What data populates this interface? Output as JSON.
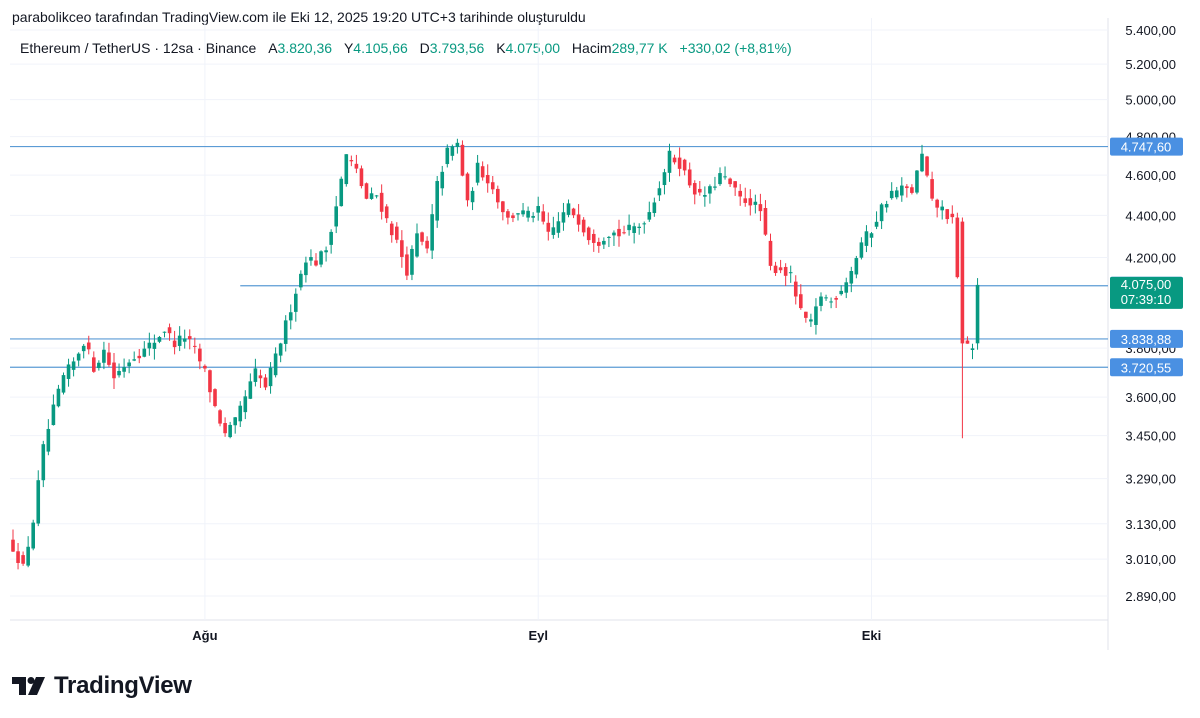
{
  "header": {
    "created_text": "parabolikceo tarafından TradingView.com ile Eki 12, 2025 19:20 UTC+3 tarihinde oluşturuldu"
  },
  "legend": {
    "symbol": "Ethereum / TetherUS · 12sa · Binance",
    "open_label": "A",
    "open_value": "3.820,36",
    "high_label": "Y",
    "high_value": "4.105,66",
    "low_label": "D",
    "low_value": "3.793,56",
    "close_label": "K",
    "close_value": "4.075,00",
    "volume_label": "Hacim",
    "volume_value": "289,77 K",
    "change": "+330,02 (+8,81%)"
  },
  "brand": {
    "name": "TradingView"
  },
  "colors": {
    "up": "#089981",
    "down": "#f23645",
    "level_line": "#5b9bd5",
    "level_label": "#4a90e2",
    "grid": "#f0f3fa"
  },
  "chart_data": {
    "type": "candlestick",
    "y_scale": "log",
    "ylim": [
      2800,
      5450
    ],
    "yticks": [
      {
        "value": 5400,
        "label": "5.400,00"
      },
      {
        "value": 5200,
        "label": "5.200,00"
      },
      {
        "value": 5000,
        "label": "5.000,00"
      },
      {
        "value": 4800,
        "label": "4.800,00"
      },
      {
        "value": 4600,
        "label": "4.600,00"
      },
      {
        "value": 4400,
        "label": "4.400,00"
      },
      {
        "value": 4200,
        "label": "4.200,00"
      },
      {
        "value": 3800,
        "label": "3.800,00"
      },
      {
        "value": 3600,
        "label": "3.600,00"
      },
      {
        "value": 3450,
        "label": "3.450,00"
      },
      {
        "value": 3290,
        "label": "3.290,00"
      },
      {
        "value": 3130,
        "label": "3.130,00"
      },
      {
        "value": 3010,
        "label": "3.010,00"
      },
      {
        "value": 2890,
        "label": "2.890,00"
      }
    ],
    "xticks": [
      {
        "index": 38,
        "label": "Ağu"
      },
      {
        "index": 104,
        "label": "Eyl"
      },
      {
        "index": 170,
        "label": "Eki"
      }
    ],
    "horizontal_levels": [
      {
        "value": 4747.6,
        "label": "4.747,60",
        "start_index": 0
      },
      {
        "value": 4071.16,
        "label": "4.071,16",
        "start_index": 45
      },
      {
        "value": 3838.88,
        "label": "3.838,88",
        "start_index": 0
      },
      {
        "value": 3720.55,
        "label": "3.720,55",
        "start_index": 0
      }
    ],
    "last_price": {
      "value": 4075.0,
      "label": "4.075,00",
      "countdown": "07:39:10"
    },
    "anchors": [
      [
        0,
        3050
      ],
      [
        2,
        2980
      ],
      [
        4,
        3140
      ],
      [
        6,
        3400
      ],
      [
        8,
        3550
      ],
      [
        10,
        3680
      ],
      [
        12,
        3740
      ],
      [
        14,
        3830
      ],
      [
        16,
        3720
      ],
      [
        18,
        3790
      ],
      [
        20,
        3680
      ],
      [
        22,
        3730
      ],
      [
        24,
        3770
      ],
      [
        26,
        3790
      ],
      [
        28,
        3830
      ],
      [
        30,
        3880
      ],
      [
        32,
        3820
      ],
      [
        34,
        3850
      ],
      [
        36,
        3790
      ],
      [
        38,
        3700
      ],
      [
        40,
        3560
      ],
      [
        42,
        3450
      ],
      [
        44,
        3500
      ],
      [
        46,
        3600
      ],
      [
        48,
        3700
      ],
      [
        50,
        3640
      ],
      [
        52,
        3760
      ],
      [
        54,
        3900
      ],
      [
        56,
        4050
      ],
      [
        58,
        4200
      ],
      [
        60,
        4180
      ],
      [
        62,
        4240
      ],
      [
        64,
        4450
      ],
      [
        66,
        4700
      ],
      [
        68,
        4620
      ],
      [
        70,
        4480
      ],
      [
        72,
        4500
      ],
      [
        74,
        4380
      ],
      [
        76,
        4270
      ],
      [
        78,
        4140
      ],
      [
        80,
        4300
      ],
      [
        82,
        4230
      ],
      [
        84,
        4550
      ],
      [
        86,
        4720
      ],
      [
        88,
        4760
      ],
      [
        90,
        4450
      ],
      [
        92,
        4640
      ],
      [
        94,
        4580
      ],
      [
        96,
        4480
      ],
      [
        98,
        4380
      ],
      [
        100,
        4420
      ],
      [
        102,
        4400
      ],
      [
        104,
        4420
      ],
      [
        106,
        4300
      ],
      [
        108,
        4370
      ],
      [
        110,
        4440
      ],
      [
        112,
        4380
      ],
      [
        114,
        4300
      ],
      [
        116,
        4280
      ],
      [
        118,
        4320
      ],
      [
        120,
        4310
      ],
      [
        122,
        4330
      ],
      [
        124,
        4350
      ],
      [
        126,
        4420
      ],
      [
        128,
        4550
      ],
      [
        130,
        4700
      ],
      [
        132,
        4660
      ],
      [
        134,
        4560
      ],
      [
        136,
        4490
      ],
      [
        138,
        4520
      ],
      [
        140,
        4600
      ],
      [
        142,
        4550
      ],
      [
        144,
        4480
      ],
      [
        146,
        4470
      ],
      [
        148,
        4420
      ],
      [
        150,
        4150
      ],
      [
        152,
        4150
      ],
      [
        154,
        4110
      ],
      [
        156,
        3950
      ],
      [
        158,
        3900
      ],
      [
        160,
        4030
      ],
      [
        162,
        4000
      ],
      [
        164,
        4060
      ],
      [
        166,
        4140
      ],
      [
        168,
        4270
      ],
      [
        170,
        4330
      ],
      [
        172,
        4440
      ],
      [
        174,
        4510
      ],
      [
        176,
        4530
      ],
      [
        178,
        4520
      ],
      [
        180,
        4700
      ],
      [
        182,
        4460
      ],
      [
        184,
        4430
      ],
      [
        186,
        4370
      ],
      [
        188,
        3820
      ],
      [
        190,
        3800
      ],
      [
        191,
        4075
      ]
    ],
    "special_candles": [
      {
        "index": 188,
        "open": 4370,
        "high": 4390,
        "low": 3440,
        "close": 3820
      },
      {
        "index": 191,
        "open": 3820.36,
        "high": 4105.66,
        "low": 3793.56,
        "close": 4075.0
      }
    ]
  }
}
